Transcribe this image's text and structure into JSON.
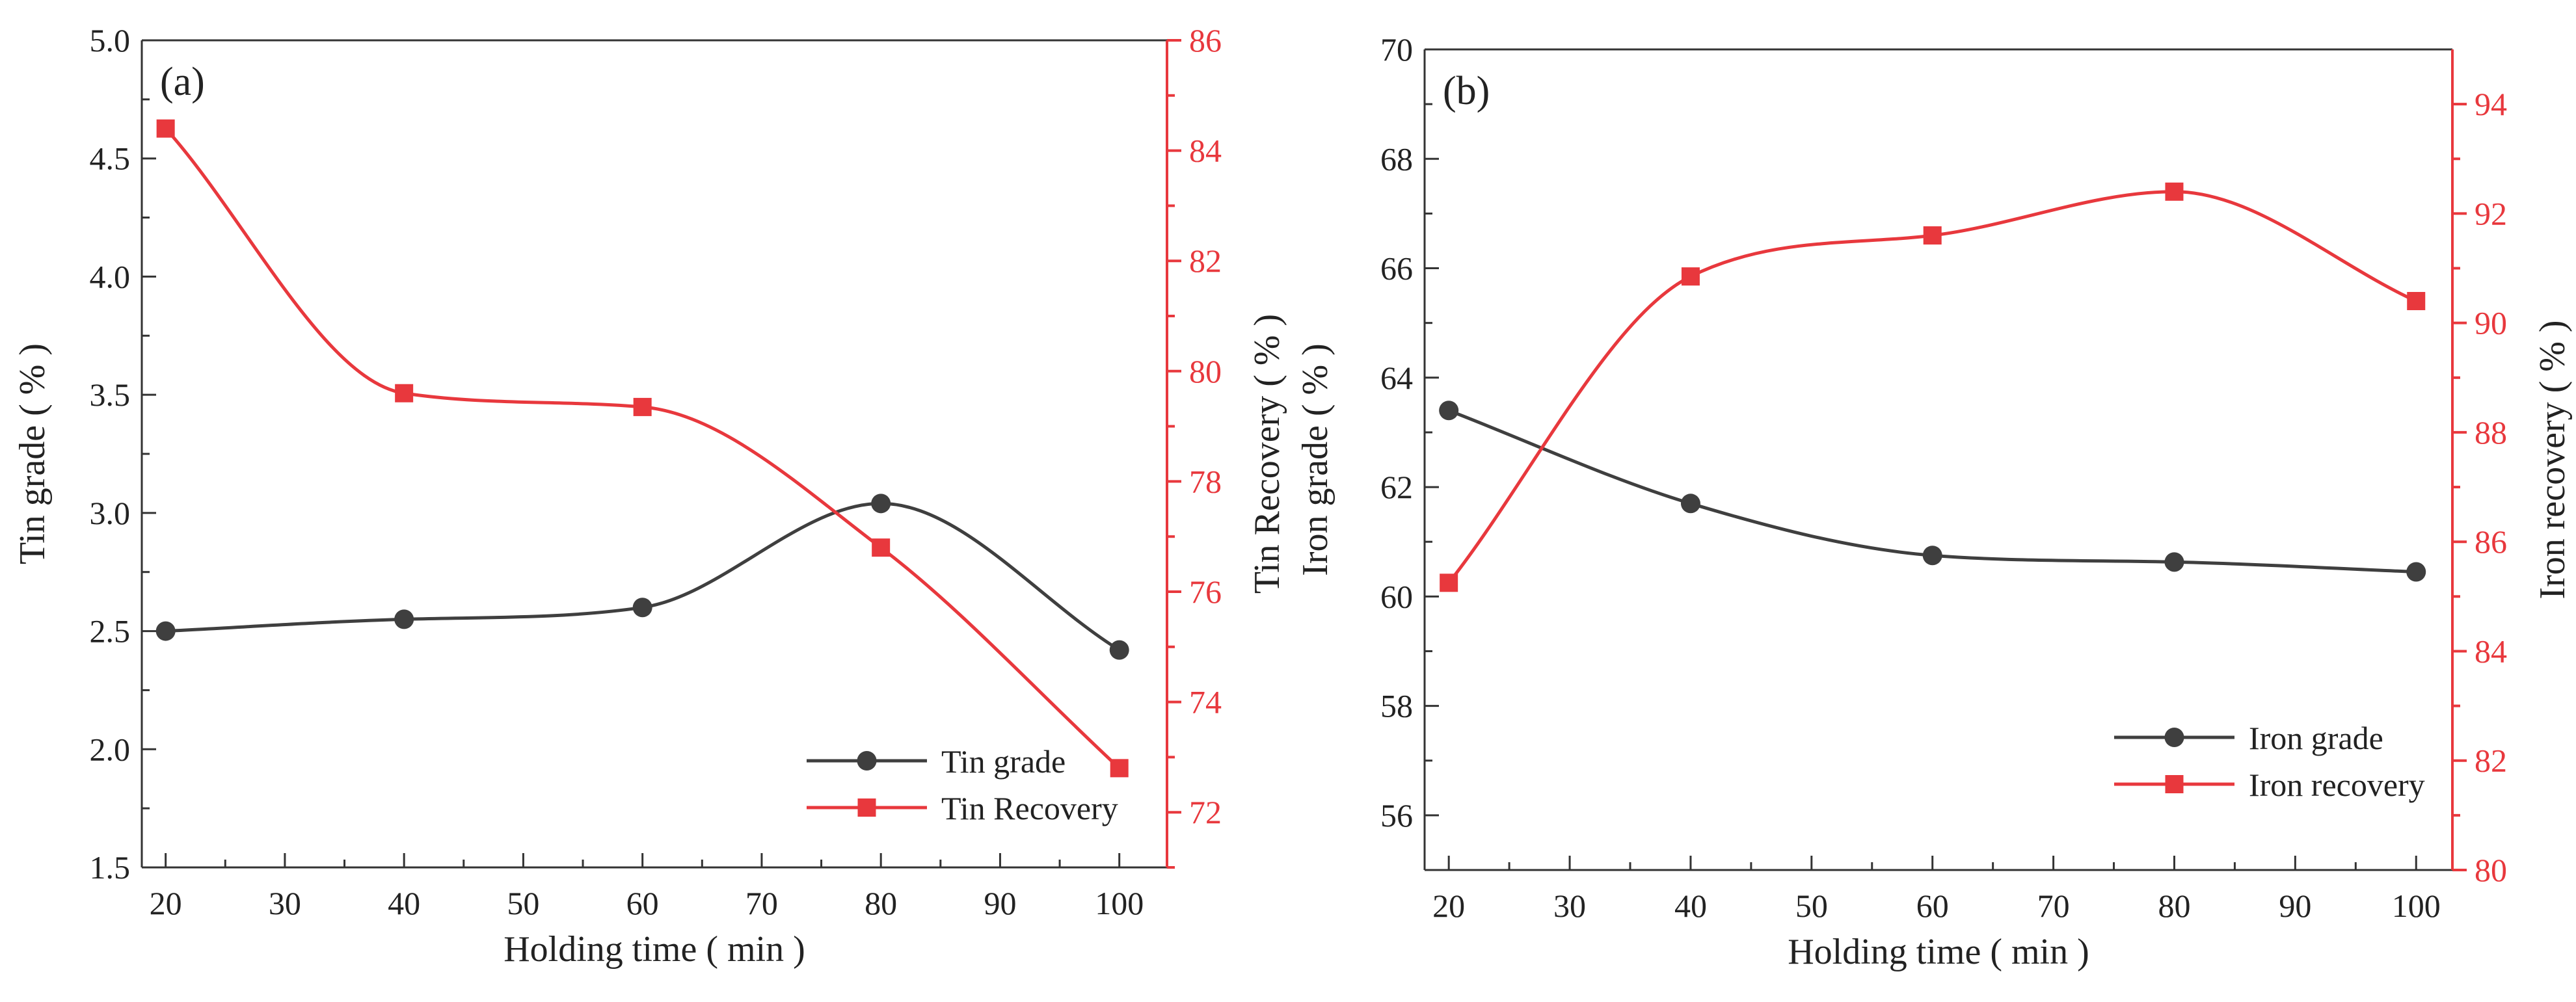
{
  "colors": {
    "black": "#3f3f3f",
    "red": "#e8383d",
    "axis_left": "#333333"
  },
  "chart_data": [
    {
      "type": "line",
      "panel_label": "(a)",
      "xlabel": "Holding time ( min )",
      "ylabel_left": "Tin grade ( % )",
      "ylabel_right": "Tin Recovery ( % )",
      "x": [
        20,
        40,
        60,
        80,
        100
      ],
      "xlim": [
        18,
        104
      ],
      "xticks": [
        "20",
        "30",
        "40",
        "50",
        "60",
        "70",
        "80",
        "90",
        "100"
      ],
      "ylim_left": [
        1.5,
        5.0
      ],
      "yticks_left": [
        "1.5",
        "2.0",
        "2.5",
        "3.0",
        "3.5",
        "4.0",
        "4.5",
        "5.0"
      ],
      "ylim_right": [
        71,
        86
      ],
      "yticks_right": [
        "72",
        "74",
        "76",
        "78",
        "80",
        "82",
        "84",
        "86"
      ],
      "series": [
        {
          "name": "Tin grade",
          "axis": "left",
          "color": "black",
          "marker": "circle",
          "values": [
            2.5,
            2.55,
            2.6,
            3.04,
            2.42
          ]
        },
        {
          "name": "Tin Recovery",
          "axis": "right",
          "color": "red",
          "marker": "square",
          "values": [
            84.4,
            79.6,
            79.35,
            76.8,
            72.8
          ]
        }
      ],
      "legend_position": "bottom-right"
    },
    {
      "type": "line",
      "panel_label": "(b)",
      "xlabel": "Holding time ( min )",
      "ylabel_left": "Iron grade ( % )",
      "ylabel_right": "Iron recovery ( % )",
      "x": [
        20,
        40,
        60,
        80,
        100
      ],
      "xlim": [
        18,
        103
      ],
      "xticks": [
        "20",
        "30",
        "40",
        "50",
        "60",
        "70",
        "80",
        "90",
        "100"
      ],
      "ylim_left": [
        55,
        70
      ],
      "yticks_left": [
        "56",
        "58",
        "60",
        "62",
        "64",
        "66",
        "68",
        "70"
      ],
      "ylim_right": [
        80,
        95
      ],
      "yticks_right": [
        "80",
        "82",
        "84",
        "86",
        "88",
        "90",
        "92",
        "94"
      ],
      "series": [
        {
          "name": "Iron grade",
          "axis": "left",
          "color": "black",
          "marker": "circle",
          "values": [
            63.4,
            61.7,
            60.75,
            60.63,
            60.45
          ]
        },
        {
          "name": "Iron recovery",
          "axis": "right",
          "color": "red",
          "marker": "square",
          "values": [
            85.25,
            90.85,
            91.6,
            92.4,
            90.4
          ]
        }
      ],
      "legend_position": "bottom-right"
    }
  ]
}
